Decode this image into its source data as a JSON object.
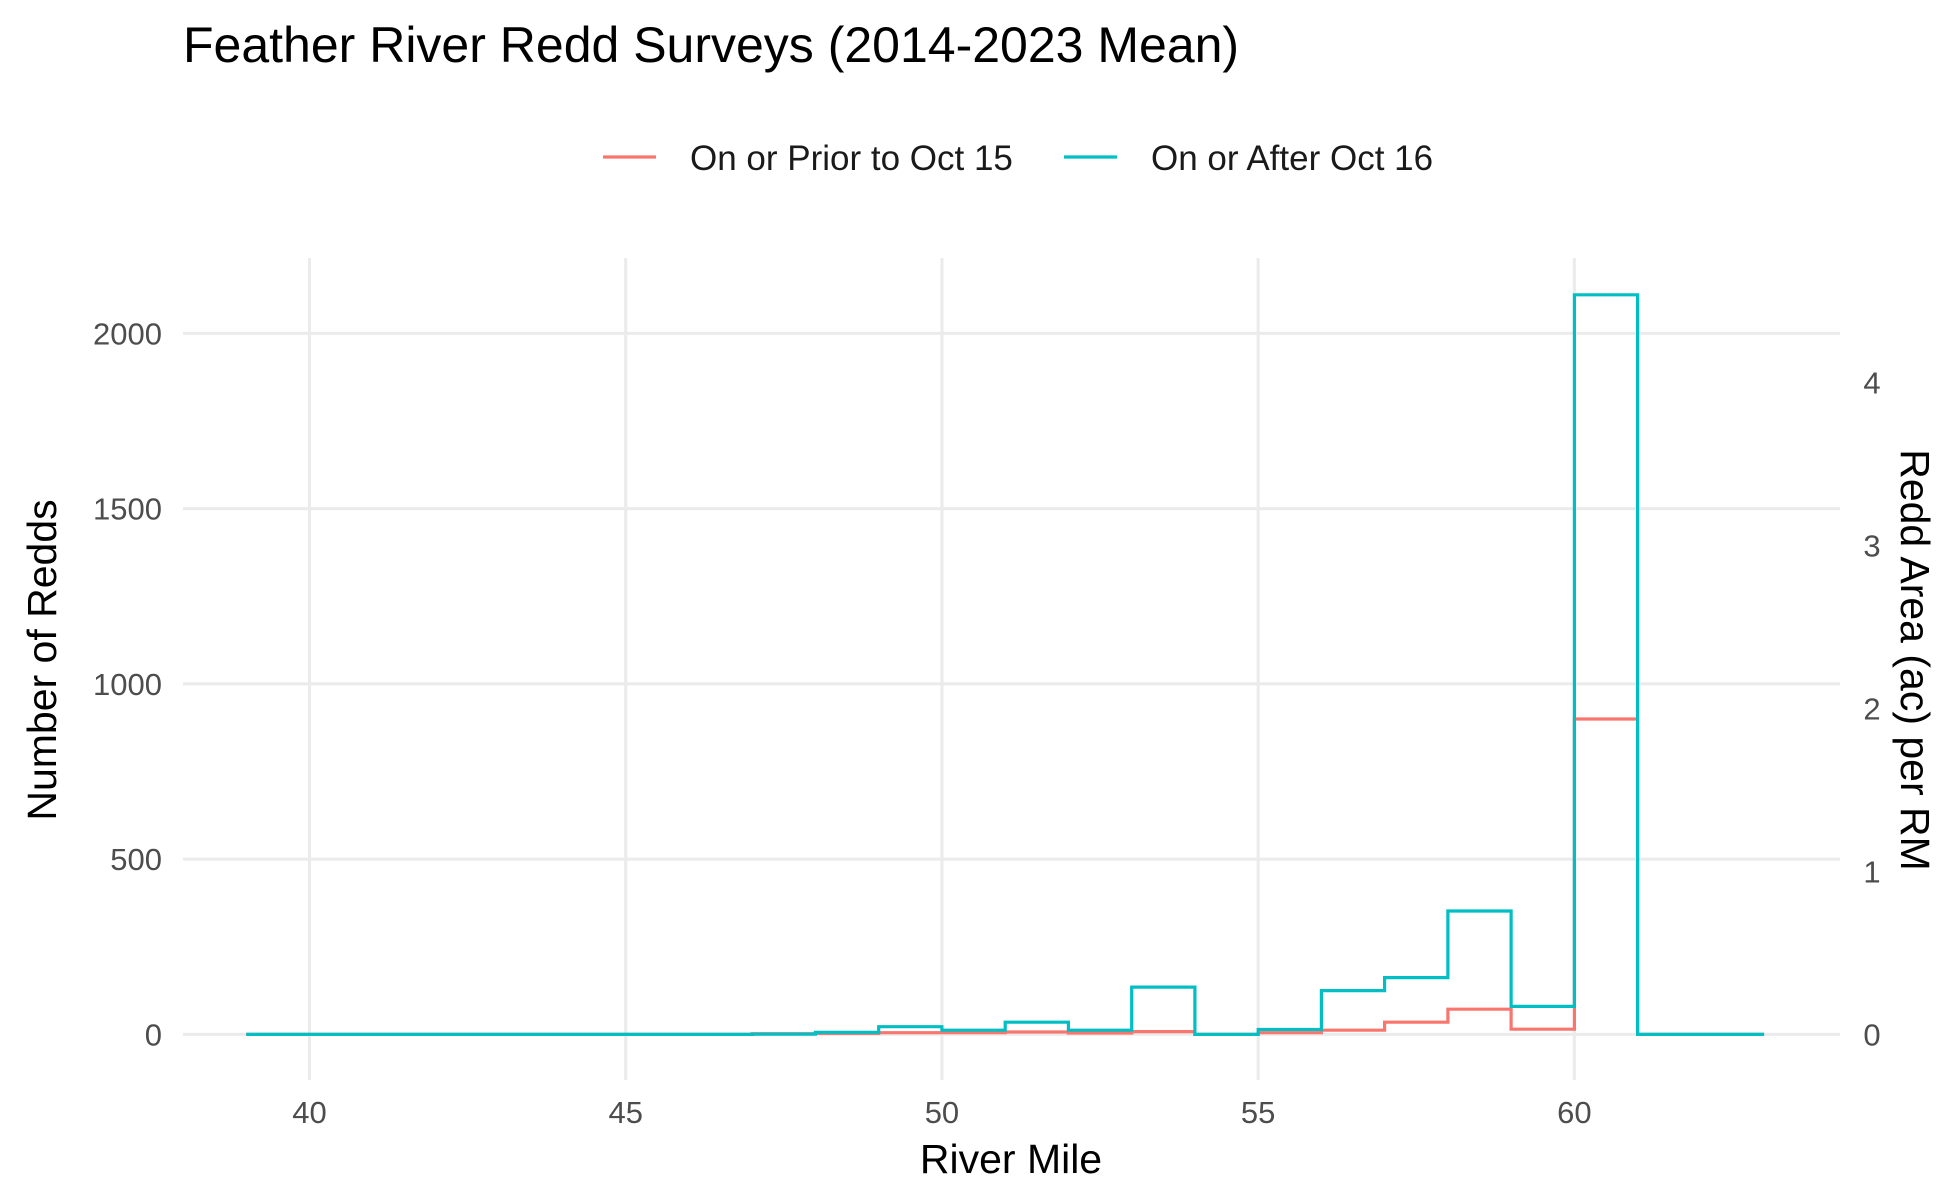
{
  "chart_data": {
    "type": "line",
    "step": true,
    "title": "Feather River Redd Surveys (2014-2023 Mean)",
    "xlabel": "River Mile",
    "ylabel": "Number of Redds",
    "y2label": "Redd Area (ac) per RM",
    "xlim": [
      38,
      64.2
    ],
    "ylim": [
      -130,
      2215
    ],
    "y2_scale_redds_per_acre": 465,
    "xticks": [
      40,
      45,
      50,
      55,
      60
    ],
    "yticks": [
      0,
      500,
      1000,
      1500,
      2000
    ],
    "y2ticks": [
      0,
      1,
      2,
      3,
      4
    ],
    "grid": true,
    "legend_position": "top",
    "series": [
      {
        "name": "On or Prior to Oct 15",
        "color": "#f8766d",
        "bin_width": 1,
        "x": [
          39,
          40,
          41,
          42,
          43,
          44,
          45,
          46,
          47,
          48,
          49,
          50,
          51,
          52,
          53,
          54,
          55,
          56,
          57,
          58,
          59,
          60,
          61,
          62
        ],
        "values": [
          0,
          0,
          0,
          0,
          0,
          0,
          0,
          0,
          2,
          3,
          5,
          5,
          7,
          4,
          8,
          0,
          5,
          12,
          35,
          72,
          15,
          900,
          0,
          0
        ]
      },
      {
        "name": "On or After Oct 16",
        "color": "#00bfc4",
        "bin_width": 1,
        "x": [
          39,
          40,
          41,
          42,
          43,
          44,
          45,
          46,
          47,
          48,
          49,
          50,
          51,
          52,
          53,
          54,
          55,
          56,
          57,
          58,
          59,
          60,
          61,
          62
        ],
        "values": [
          0,
          0,
          0,
          0,
          0,
          0,
          0,
          0,
          1,
          6,
          22,
          12,
          35,
          12,
          135,
          0,
          14,
          125,
          162,
          352,
          80,
          2110,
          0,
          0
        ]
      }
    ]
  }
}
